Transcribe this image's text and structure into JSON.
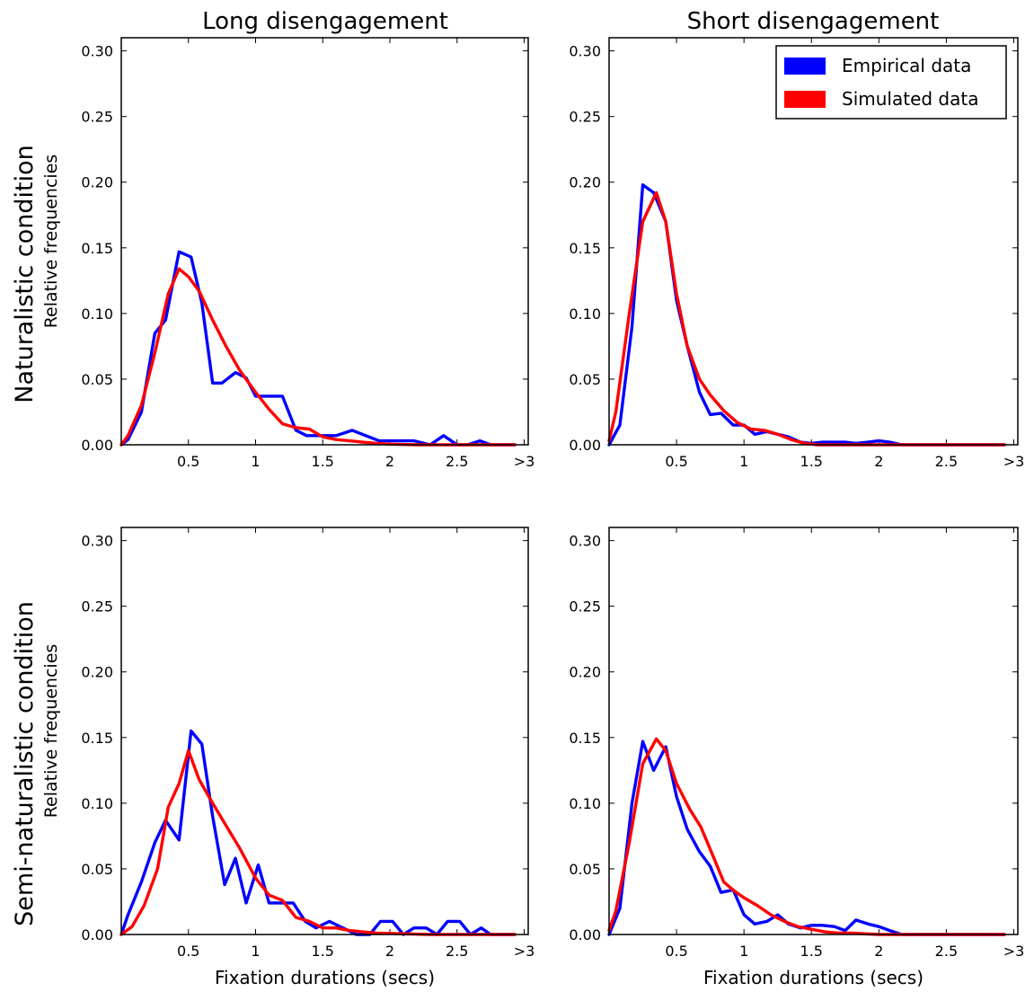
{
  "figure": {
    "column_titles": [
      "Long disengagement",
      "Short disengagement"
    ],
    "row_titles": [
      "Naturalistic condition",
      "Semi-naturalistic condition"
    ]
  },
  "legend": {
    "placement": "top-right of Short disengagement / Naturalistic panel",
    "entries": [
      {
        "label": "Empirical data",
        "color": "#0000ff"
      },
      {
        "label": "Simulated data",
        "color": "#ff0000"
      }
    ]
  },
  "colors": {
    "empirical": "#0000ff",
    "simulated": "#ff0000",
    "axis": "#000000",
    "background": "#ffffff"
  },
  "chart_data": [
    {
      "type": "line",
      "panel": "naturalistic-long",
      "title": "",
      "xlabel": "",
      "ylabel": "Relative frequencies",
      "xlim": [
        0,
        3.03
      ],
      "ylim": [
        0,
        0.31
      ],
      "xticks": [
        0.5,
        1,
        1.5,
        2,
        2.5,
        3
      ],
      "xtick_labels": [
        "0.5",
        "1",
        "1.5",
        "2",
        "2.5",
        ">3"
      ],
      "yticks": [
        0,
        0.05,
        0.1,
        0.15,
        0.2,
        0.25,
        0.3
      ],
      "ytick_labels": [
        "0.00",
        "0.05",
        "0.10",
        "0.15",
        "0.20",
        "0.25",
        "0.30"
      ],
      "grid": false,
      "series": [
        {
          "name": "Empirical data",
          "color": "#0000ff",
          "x": [
            0,
            0.05,
            0.15,
            0.25,
            0.33,
            0.43,
            0.52,
            0.6,
            0.68,
            0.75,
            0.85,
            0.93,
            1.0,
            1.1,
            1.2,
            1.3,
            1.38,
            1.5,
            1.6,
            1.72,
            1.82,
            1.92,
            2.0,
            2.1,
            2.18,
            2.3,
            2.4,
            2.5,
            2.58,
            2.67,
            2.75,
            2.85,
            2.93
          ],
          "y": [
            0.0,
            0.004,
            0.025,
            0.085,
            0.095,
            0.147,
            0.143,
            0.108,
            0.047,
            0.047,
            0.055,
            0.051,
            0.037,
            0.037,
            0.037,
            0.011,
            0.007,
            0.007,
            0.007,
            0.011,
            0.007,
            0.003,
            0.003,
            0.003,
            0.003,
            0.0,
            0.007,
            0.0,
            0.0,
            0.003,
            0.0,
            0.0,
            0.0
          ]
        },
        {
          "name": "Simulated data",
          "color": "#ff0000",
          "x": [
            0,
            0.05,
            0.15,
            0.25,
            0.35,
            0.43,
            0.5,
            0.58,
            0.68,
            0.78,
            0.88,
            1.0,
            1.1,
            1.2,
            1.3,
            1.4,
            1.5,
            1.6,
            1.7,
            1.8,
            1.9,
            2.0,
            2.2,
            2.5,
            2.75,
            2.93
          ],
          "y": [
            0.0,
            0.007,
            0.03,
            0.07,
            0.115,
            0.134,
            0.128,
            0.117,
            0.095,
            0.075,
            0.057,
            0.04,
            0.027,
            0.016,
            0.013,
            0.012,
            0.006,
            0.004,
            0.003,
            0.002,
            0.001,
            0.0005,
            0.0,
            0.0,
            0.0,
            0.0
          ]
        }
      ]
    },
    {
      "type": "line",
      "panel": "naturalistic-short",
      "title": "",
      "xlabel": "",
      "ylabel": "",
      "xlim": [
        0,
        3.03
      ],
      "ylim": [
        0,
        0.31
      ],
      "xticks": [
        0.5,
        1,
        1.5,
        2,
        2.5,
        3
      ],
      "xtick_labels": [
        "0.5",
        "1",
        "1.5",
        "2",
        "2.5",
        ">3"
      ],
      "yticks": [
        0,
        0.05,
        0.1,
        0.15,
        0.2,
        0.25,
        0.3
      ],
      "ytick_labels": [
        "0.00",
        "0.05",
        "0.10",
        "0.15",
        "0.20",
        "0.25",
        "0.30"
      ],
      "grid": false,
      "series": [
        {
          "name": "Empirical data",
          "color": "#0000ff",
          "x": [
            0,
            0.08,
            0.17,
            0.25,
            0.33,
            0.42,
            0.5,
            0.58,
            0.67,
            0.75,
            0.83,
            0.92,
            1.0,
            1.08,
            1.17,
            1.25,
            1.33,
            1.42,
            1.5,
            1.58,
            1.67,
            1.75,
            1.83,
            1.92,
            2.0,
            2.08,
            2.17,
            2.3,
            2.5,
            2.75,
            2.93
          ],
          "y": [
            0.0,
            0.015,
            0.09,
            0.198,
            0.192,
            0.17,
            0.11,
            0.075,
            0.04,
            0.023,
            0.024,
            0.015,
            0.015,
            0.008,
            0.01,
            0.008,
            0.006,
            0.002,
            0.001,
            0.002,
            0.002,
            0.002,
            0.001,
            0.002,
            0.003,
            0.002,
            0.0,
            0.0,
            0.0,
            0.0,
            0.0
          ]
        },
        {
          "name": "Simulated data",
          "color": "#ff0000",
          "x": [
            0,
            0.05,
            0.15,
            0.25,
            0.35,
            0.42,
            0.5,
            0.58,
            0.67,
            0.75,
            0.85,
            0.95,
            1.05,
            1.15,
            1.25,
            1.35,
            1.45,
            1.55,
            1.7,
            2.0,
            2.3,
            2.6,
            2.93
          ],
          "y": [
            0.003,
            0.025,
            0.1,
            0.17,
            0.192,
            0.17,
            0.115,
            0.075,
            0.05,
            0.038,
            0.026,
            0.017,
            0.012,
            0.011,
            0.008,
            0.004,
            0.001,
            0.0,
            0.0,
            0.0,
            0.0,
            0.0,
            0.0
          ]
        }
      ]
    },
    {
      "type": "line",
      "panel": "semi-naturalistic-long",
      "title": "",
      "xlabel": "Fixation durations (secs)",
      "ylabel": "Relative frequencies",
      "xlim": [
        0,
        3.03
      ],
      "ylim": [
        0,
        0.31
      ],
      "xticks": [
        0.5,
        1,
        1.5,
        2,
        2.5,
        3
      ],
      "xtick_labels": [
        "0.5",
        "1",
        "1.5",
        "2",
        "2.5",
        ">3"
      ],
      "yticks": [
        0,
        0.05,
        0.1,
        0.15,
        0.2,
        0.25,
        0.3
      ],
      "ytick_labels": [
        "0.00",
        "0.05",
        "0.10",
        "0.15",
        "0.20",
        "0.25",
        "0.30"
      ],
      "grid": false,
      "series": [
        {
          "name": "Empirical data",
          "color": "#0000ff",
          "x": [
            0,
            0.05,
            0.15,
            0.25,
            0.33,
            0.43,
            0.52,
            0.6,
            0.68,
            0.77,
            0.85,
            0.93,
            1.02,
            1.1,
            1.2,
            1.28,
            1.37,
            1.45,
            1.55,
            1.65,
            1.75,
            1.85,
            1.93,
            2.02,
            2.1,
            2.18,
            2.27,
            2.35,
            2.43,
            2.52,
            2.6,
            2.68,
            2.75,
            2.85,
            2.93
          ],
          "y": [
            0.0,
            0.015,
            0.04,
            0.07,
            0.087,
            0.072,
            0.155,
            0.145,
            0.09,
            0.038,
            0.058,
            0.024,
            0.053,
            0.024,
            0.024,
            0.024,
            0.01,
            0.005,
            0.01,
            0.005,
            0.0,
            0.0,
            0.01,
            0.01,
            0.0,
            0.005,
            0.005,
            0.0,
            0.01,
            0.01,
            0.0,
            0.005,
            0.0,
            0.0,
            0.0
          ]
        },
        {
          "name": "Simulated data",
          "color": "#ff0000",
          "x": [
            0,
            0.08,
            0.17,
            0.27,
            0.35,
            0.43,
            0.5,
            0.58,
            0.68,
            0.78,
            0.88,
            1.0,
            1.1,
            1.2,
            1.3,
            1.4,
            1.5,
            1.6,
            1.7,
            1.8,
            1.9,
            2.0,
            2.3,
            2.6,
            2.93
          ],
          "y": [
            0.0,
            0.006,
            0.022,
            0.05,
            0.097,
            0.115,
            0.14,
            0.118,
            0.1,
            0.083,
            0.066,
            0.043,
            0.03,
            0.026,
            0.013,
            0.01,
            0.005,
            0.005,
            0.003,
            0.002,
            0.001,
            0.0008,
            0.0,
            0.0,
            0.0
          ]
        }
      ]
    },
    {
      "type": "line",
      "panel": "semi-naturalistic-short",
      "title": "",
      "xlabel": "Fixation durations (secs)",
      "ylabel": "",
      "xlim": [
        0,
        3.03
      ],
      "ylim": [
        0,
        0.31
      ],
      "xticks": [
        0.5,
        1,
        1.5,
        2,
        2.5,
        3
      ],
      "xtick_labels": [
        "0.5",
        "1",
        "1.5",
        "2",
        "2.5",
        ">3"
      ],
      "yticks": [
        0,
        0.05,
        0.1,
        0.15,
        0.2,
        0.25,
        0.3
      ],
      "ytick_labels": [
        "0.00",
        "0.05",
        "0.10",
        "0.15",
        "0.20",
        "0.25",
        "0.30"
      ],
      "grid": false,
      "series": [
        {
          "name": "Empirical data",
          "color": "#0000ff",
          "x": [
            0,
            0.08,
            0.17,
            0.25,
            0.33,
            0.42,
            0.5,
            0.58,
            0.67,
            0.75,
            0.83,
            0.92,
            1.0,
            1.08,
            1.17,
            1.25,
            1.33,
            1.42,
            1.5,
            1.58,
            1.67,
            1.75,
            1.83,
            1.92,
            2.0,
            2.08,
            2.17,
            2.3,
            2.5,
            2.75,
            2.93
          ],
          "y": [
            0.0,
            0.02,
            0.1,
            0.147,
            0.125,
            0.143,
            0.105,
            0.08,
            0.063,
            0.052,
            0.032,
            0.034,
            0.015,
            0.008,
            0.01,
            0.015,
            0.008,
            0.005,
            0.007,
            0.007,
            0.006,
            0.003,
            0.011,
            0.008,
            0.006,
            0.003,
            0.0,
            0.0,
            0.0,
            0.0,
            0.0
          ]
        },
        {
          "name": "Simulated data",
          "color": "#ff0000",
          "x": [
            0,
            0.05,
            0.15,
            0.25,
            0.35,
            0.42,
            0.5,
            0.6,
            0.68,
            0.77,
            0.85,
            0.93,
            1.0,
            1.1,
            1.2,
            1.3,
            1.4,
            1.5,
            1.6,
            1.7,
            1.8,
            2.0,
            2.3,
            2.6,
            2.93
          ],
          "y": [
            0.003,
            0.018,
            0.07,
            0.13,
            0.149,
            0.14,
            0.115,
            0.095,
            0.082,
            0.06,
            0.04,
            0.033,
            0.028,
            0.022,
            0.015,
            0.01,
            0.006,
            0.004,
            0.002,
            0.001,
            0.001,
            0.0,
            0.0,
            0.0,
            0.0
          ]
        }
      ]
    }
  ]
}
